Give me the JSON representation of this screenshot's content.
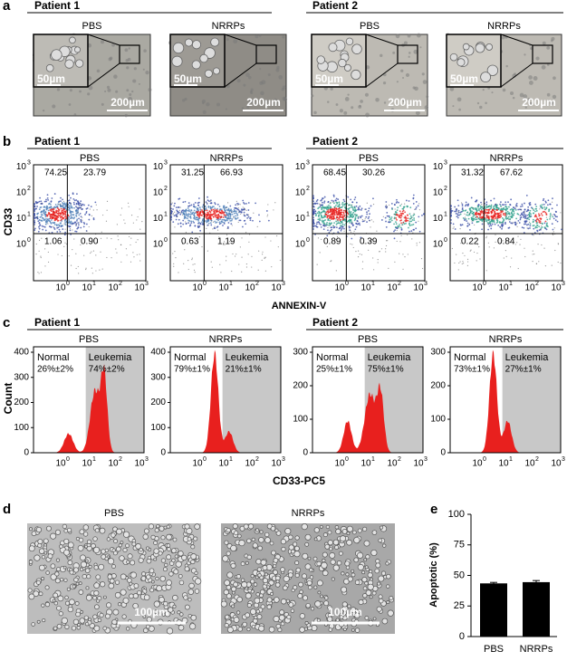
{
  "panel_a": {
    "label": "a",
    "groups": [
      {
        "title": "Patient 1",
        "images": [
          {
            "title": "PBS",
            "scale_small": "50µm",
            "scale_large": "200µm"
          },
          {
            "title": "NRRPs",
            "scale_small": "50µm",
            "scale_large": "200µm"
          }
        ]
      },
      {
        "title": "Patient 2",
        "images": [
          {
            "title": "PBS",
            "scale_small": "50µm",
            "scale_large": "200µm"
          },
          {
            "title": "NRRPs",
            "scale_small": "50µm",
            "scale_large": "200µm"
          }
        ]
      }
    ]
  },
  "panel_b": {
    "label": "b",
    "y_label": "CD33",
    "x_label": "ANNEXIN-V",
    "tick_base": "10",
    "tick_exponents": [
      0,
      1,
      2,
      3
    ],
    "groups": [
      {
        "title": "Patient 1",
        "plots": [
          {
            "title": "PBS",
            "quadrants": [
              "74.25",
              "23.79",
              "1.06",
              "0.90"
            ]
          },
          {
            "title": "NRRPs",
            "quadrants": [
              "31.25",
              "66.93",
              "0.63",
              "1.19"
            ]
          }
        ]
      },
      {
        "title": "Patient 2",
        "plots": [
          {
            "title": "PBS",
            "quadrants": [
              "68.45",
              "30.26",
              "0.89",
              "0.39"
            ]
          },
          {
            "title": "NRRPs",
            "quadrants": [
              "31.32",
              "67.62",
              "0.22",
              "0.84"
            ]
          }
        ]
      }
    ]
  },
  "panel_c": {
    "label": "c",
    "y_label": "Count",
    "x_label": "CD33-PC5",
    "tick_base": "10",
    "tick_exponents": [
      0,
      1,
      2,
      3
    ],
    "groups": [
      {
        "title": "Patient 1",
        "yticks": [
          0,
          100,
          200,
          300,
          400
        ],
        "plots": [
          {
            "title": "PBS",
            "normal": "Normal",
            "normal_pct": "26%±2%",
            "leukemia": "Leukemia",
            "leukemia_pct": "74%±2%"
          },
          {
            "title": "NRRPs",
            "normal": "Normal",
            "normal_pct": "79%±1%",
            "leukemia": "Leukemia",
            "leukemia_pct": "21%±1%"
          }
        ]
      },
      {
        "title": "Patient 2",
        "yticks": [
          0,
          100,
          200,
          300
        ],
        "plots": [
          {
            "title": "PBS",
            "normal": "Normal",
            "normal_pct": "25%±1%",
            "leukemia": "Leukemia",
            "leukemia_pct": "75%±1%"
          },
          {
            "title": "NRRPs",
            "normal": "Normal",
            "normal_pct": "73%±1%",
            "leukemia": "Leukemia",
            "leukemia_pct": "27%±1%"
          }
        ]
      }
    ]
  },
  "panel_d": {
    "label": "d",
    "images": [
      {
        "title": "PBS",
        "scale": "100µm"
      },
      {
        "title": "NRRPs",
        "scale": "100µm"
      }
    ]
  },
  "chart_data": {
    "type": "bar",
    "panel_label": "e",
    "y_label": "Apoptotic (%)",
    "categories": [
      "PBS",
      "NRRPs"
    ],
    "values": [
      43.5,
      44.5
    ],
    "errors": [
      0.8,
      1.3
    ],
    "color": "#000000",
    "ylim": [
      0,
      100
    ],
    "yticks": [
      0,
      25,
      50,
      75,
      100
    ]
  }
}
